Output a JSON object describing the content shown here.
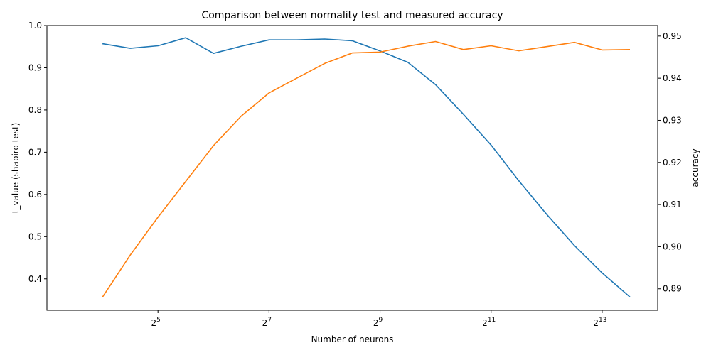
{
  "chart_data": {
    "type": "line",
    "title": "Comparison between normality test and measured accuracy",
    "xlabel": "Number of neurons",
    "ylabel": "t_value (shapiro test)",
    "y2label": "accuracy",
    "x_scale": "log2",
    "xlim_exp": [
      3.0,
      14.0
    ],
    "x_tick_labels": [
      {
        "base": "2",
        "exp": "5"
      },
      {
        "base": "2",
        "exp": "7"
      },
      {
        "base": "2",
        "exp": "9"
      },
      {
        "base": "2",
        "exp": "11"
      },
      {
        "base": "2",
        "exp": "13"
      }
    ],
    "x_tick_exps": [
      5,
      7,
      9,
      11,
      13
    ],
    "ylim": [
      0.3256,
      1.0
    ],
    "y_ticks": [
      0.4,
      0.5,
      0.6,
      0.7,
      0.8,
      0.9,
      1.0
    ],
    "y_tick_labels": [
      "0.4",
      "0.5",
      "0.6",
      "0.7",
      "0.8",
      "0.9",
      "1.0"
    ],
    "y2lim": [
      0.8849,
      0.9525
    ],
    "y2_ticks": [
      0.89,
      0.9,
      0.91,
      0.92,
      0.93,
      0.94,
      0.95
    ],
    "y2_tick_labels": [
      "0.89",
      "0.90",
      "0.91",
      "0.92",
      "0.93",
      "0.94",
      "0.95"
    ],
    "x_exps": [
      4.0,
      4.5,
      5.0,
      5.5,
      6.0,
      6.5,
      7.0,
      7.5,
      8.0,
      8.5,
      9.0,
      9.5,
      10.0,
      10.5,
      11.0,
      11.5,
      12.0,
      12.5,
      13.0,
      13.5
    ],
    "series": [
      {
        "axis": "left",
        "color": "#1f77b4",
        "values": [
          0.957,
          0.946,
          0.952,
          0.971,
          0.934,
          0.951,
          0.966,
          0.966,
          0.968,
          0.964,
          0.94,
          0.913,
          0.86,
          0.79,
          0.717,
          0.632,
          0.553,
          0.479,
          0.414,
          0.357
        ]
      },
      {
        "axis": "right",
        "color": "#ff7f0e",
        "values": [
          0.888,
          0.898,
          0.907,
          0.9155,
          0.924,
          0.931,
          0.9365,
          0.94,
          0.9435,
          0.946,
          0.9462,
          0.9476,
          0.9487,
          0.9468,
          0.9477,
          0.9465,
          0.9475,
          0.9485,
          0.9467,
          0.9468
        ]
      }
    ]
  }
}
